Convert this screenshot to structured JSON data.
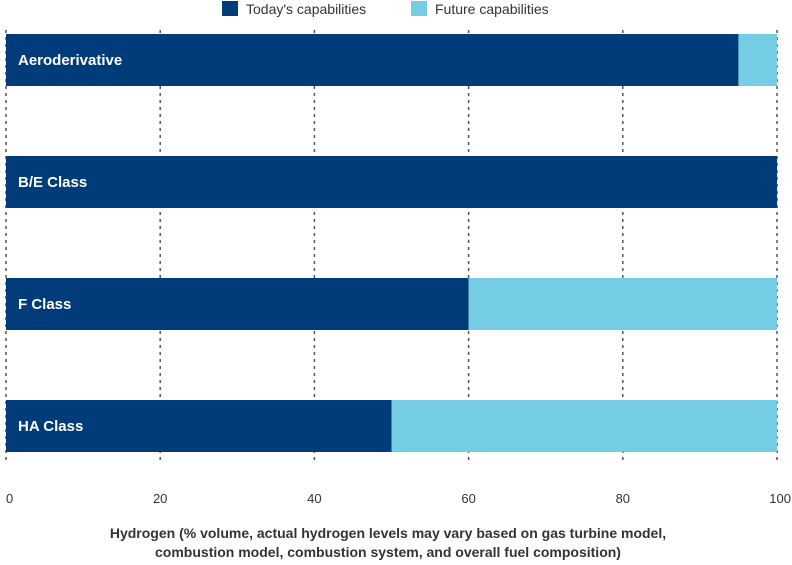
{
  "chart_data": {
    "type": "bar",
    "orientation": "horizontal",
    "stacked": true,
    "categories": [
      "Aeroderivative",
      "B/E Class",
      "F Class",
      "HA Class"
    ],
    "series": [
      {
        "name": "Today's capabilities",
        "color": "#003B7A",
        "values": [
          95,
          100,
          60,
          50
        ]
      },
      {
        "name": "Future capabilities",
        "color": "#74CDE2",
        "values": [
          5,
          0,
          40,
          50
        ]
      }
    ],
    "xlim": [
      0,
      100
    ],
    "xticks": [
      0,
      20,
      40,
      60,
      80,
      100
    ],
    "xlabel_lines": [
      "Hydrogen (% volume, actual hydrogen levels may vary based on gas turbine model,",
      "combustion model, combustion system, and overall fuel composition)"
    ],
    "grid": "vertical dashed",
    "legend_placement": "top-center"
  }
}
